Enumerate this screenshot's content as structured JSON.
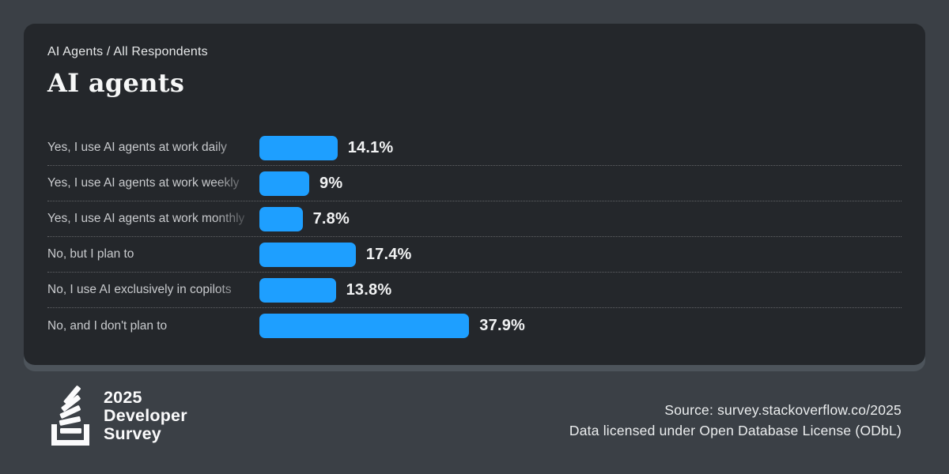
{
  "page": {
    "background_color": "#3b4046",
    "card_color": "#24272b",
    "card_shadow_color": "#4d545b",
    "accent": "#1e9fff"
  },
  "header": {
    "breadcrumb": "AI Agents / All Respondents",
    "title": "AI agents"
  },
  "chart_data": {
    "type": "bar",
    "orientation": "horizontal",
    "title": "AI agents",
    "xlabel": "",
    "ylabel": "",
    "unit": "%",
    "xlim": [
      0,
      40
    ],
    "grid": false,
    "legend": "none",
    "bar_color": "#1e9fff",
    "categories": [
      "Yes, I use AI agents at work daily",
      "Yes, I use AI agents at work weekly",
      "Yes, I use AI agents at work monthly",
      "No, but I plan to",
      "No, I use AI exclusively in copilots",
      "No, and I don't plan to"
    ],
    "values": [
      14.1,
      9,
      7.8,
      17.4,
      13.8,
      37.9
    ],
    "value_labels": [
      "14.1%",
      "9%",
      "7.8%",
      "17.4%",
      "13.8%",
      "37.9%"
    ],
    "notes": "category labels truncated with right fade before bars"
  },
  "footer": {
    "logo": {
      "icon": "stackoverflow-icon",
      "lines": [
        "2025",
        "Developer",
        "Survey"
      ]
    },
    "source_line1": "Source: survey.stackoverflow.co/2025",
    "source_line2": "Data licensed under Open Database License (ODbL)"
  }
}
